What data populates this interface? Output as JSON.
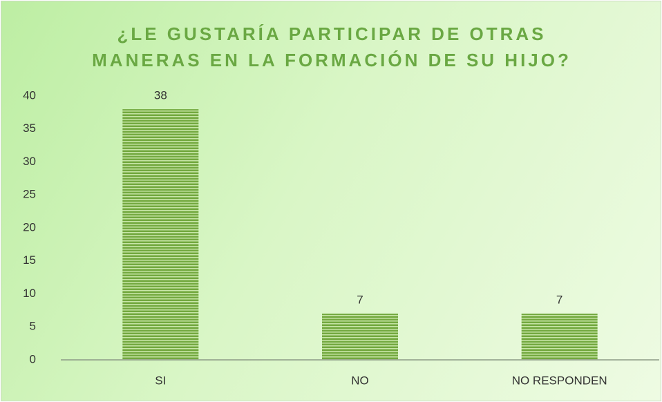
{
  "chart_data": {
    "type": "bar",
    "title": "¿LE GUSTARÍA PARTICIPAR DE OTRAS MANERAS EN LA FORMACIÓN DE SU HIJO?",
    "categories": [
      "SI",
      "NO",
      "NO RESPONDEN"
    ],
    "values": [
      38,
      7,
      7
    ],
    "color": "#72a83e",
    "ylim": [
      0,
      40
    ],
    "yticks": [
      0,
      5,
      10,
      15,
      20,
      25,
      30,
      35,
      40
    ],
    "grid": false
  }
}
